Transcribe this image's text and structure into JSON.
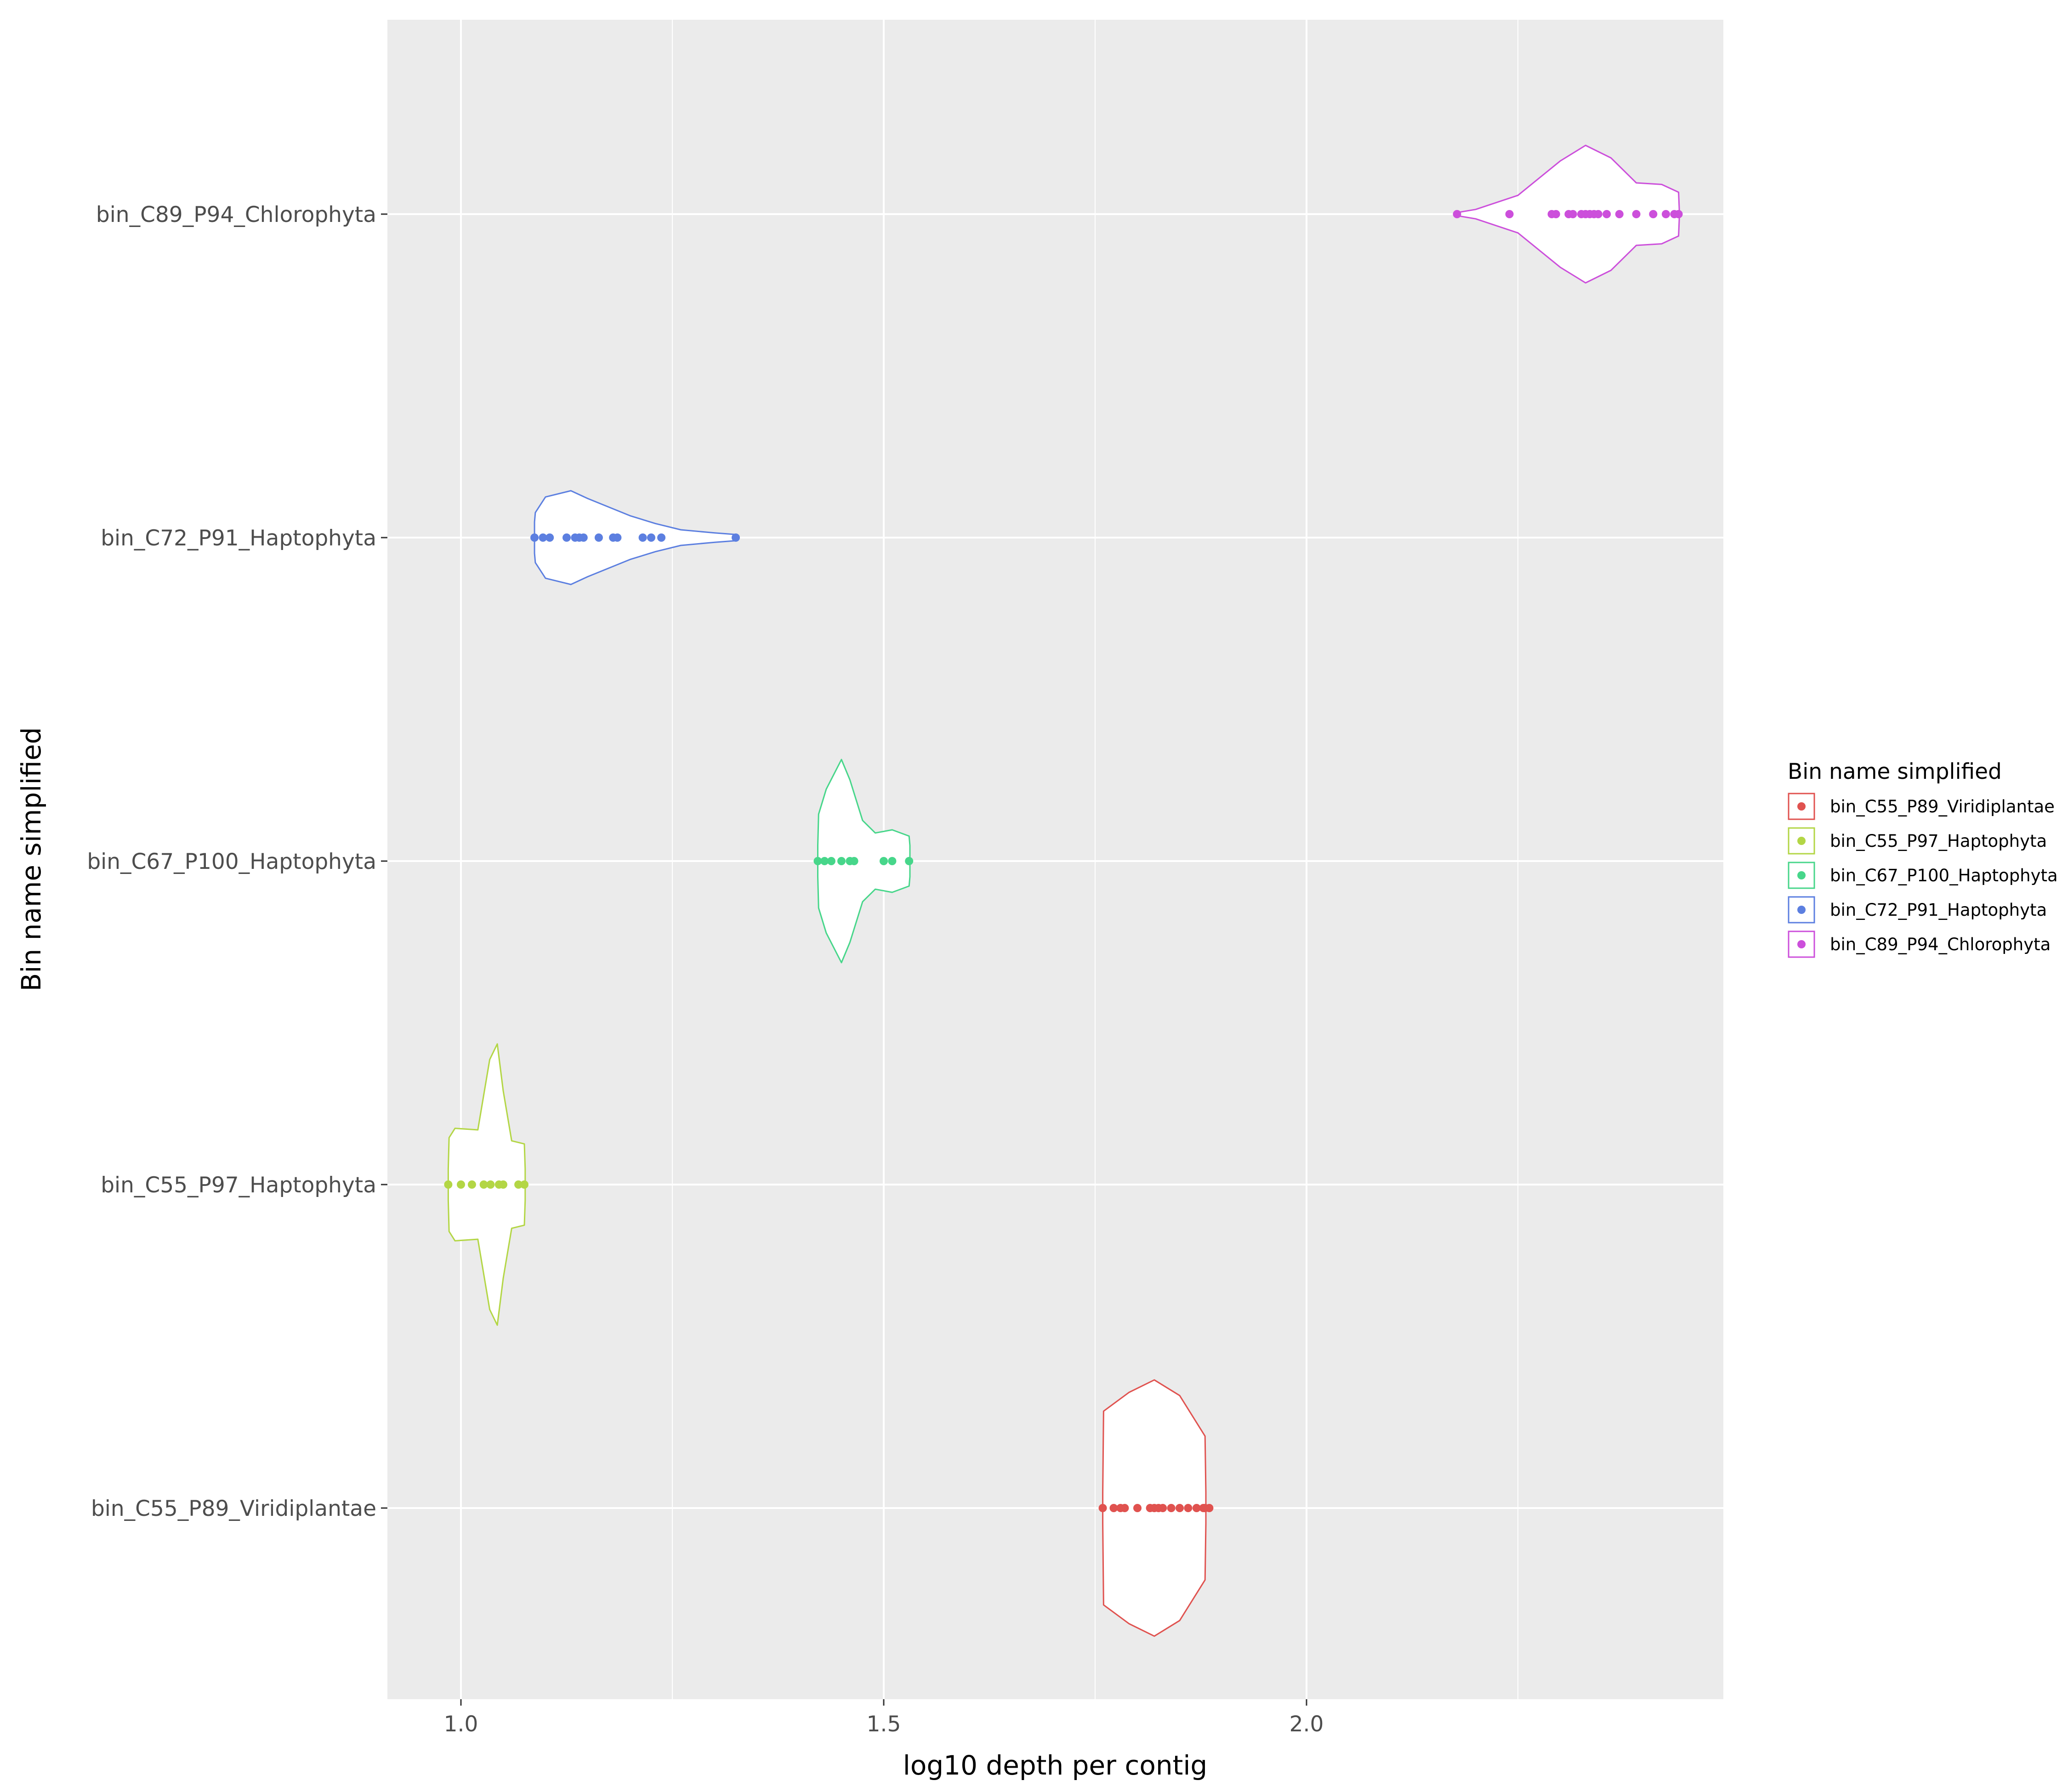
{
  "chart_data": {
    "type": "violin",
    "orientation": "horizontal",
    "title": "",
    "xlabel": "log10 depth per contig",
    "ylabel": "Bin name simplified",
    "xlim": [
      0.912,
      2.5
    ],
    "xticks": [
      1.0,
      1.5,
      2.0
    ],
    "xtick_labels": [
      "1.0",
      "1.5",
      "2.0"
    ],
    "x_minor_ticks": [
      1.25,
      1.75,
      2.25
    ],
    "grid": true,
    "legend": {
      "title": "Bin name simplified",
      "placement": "right",
      "entries": [
        "bin_C55_P89_Viridiplantae",
        "bin_C55_P97_Haptophyta",
        "bin_C67_P100_Haptophyta",
        "bin_C72_P91_Haptophyta",
        "bin_C89_P94_Chlorophyta"
      ]
    },
    "categories": [
      "bin_C55_P89_Viridiplantae",
      "bin_C55_P97_Haptophyta",
      "bin_C67_P100_Haptophyta",
      "bin_C72_P91_Haptophyta",
      "bin_C89_P94_Chlorophyta"
    ],
    "series": [
      {
        "name": "bin_C55_P89_Viridiplantae",
        "color": "#e0524f",
        "points": [
          1.759,
          1.772,
          1.78,
          1.785,
          1.8,
          1.815,
          1.82,
          1.825,
          1.83,
          1.84,
          1.85,
          1.86,
          1.87,
          1.88,
          1.885,
          1.878
        ],
        "density": [
          [
            1.759,
            0.1
          ],
          [
            1.76,
            0.62
          ],
          [
            1.79,
            0.74
          ],
          [
            1.82,
            0.82
          ],
          [
            1.85,
            0.72
          ],
          [
            1.88,
            0.46
          ],
          [
            1.881,
            0.1
          ]
        ]
      },
      {
        "name": "bin_C55_P97_Haptophyta",
        "color": "#b3d645",
        "points": [
          0.985,
          1.0,
          1.013,
          1.027,
          1.035,
          1.045,
          1.05,
          1.068,
          1.075
        ],
        "density": [
          [
            0.985,
            0.1
          ],
          [
            0.986,
            0.3
          ],
          [
            0.993,
            0.36
          ],
          [
            1.02,
            0.35
          ],
          [
            1.034,
            0.8
          ],
          [
            1.043,
            0.9
          ],
          [
            1.05,
            0.6
          ],
          [
            1.06,
            0.28
          ],
          [
            1.075,
            0.26
          ],
          [
            1.076,
            0.1
          ]
        ]
      },
      {
        "name": "bin_C67_P100_Haptophyta",
        "color": "#47d68a",
        "points": [
          1.422,
          1.43,
          1.438,
          1.45,
          1.46,
          1.465,
          1.5,
          1.51,
          1.53
        ],
        "density": [
          [
            1.422,
            0.1
          ],
          [
            1.423,
            0.3
          ],
          [
            1.432,
            0.46
          ],
          [
            1.45,
            0.65
          ],
          [
            1.46,
            0.52
          ],
          [
            1.475,
            0.26
          ],
          [
            1.49,
            0.18
          ],
          [
            1.51,
            0.2
          ],
          [
            1.53,
            0.16
          ],
          [
            1.531,
            0.1
          ]
        ]
      },
      {
        "name": "bin_C72_P91_Haptophyta",
        "color": "#5c7fe0",
        "points": [
          1.087,
          1.097,
          1.105,
          1.125,
          1.135,
          1.14,
          1.145,
          1.163,
          1.18,
          1.185,
          1.215,
          1.225,
          1.237,
          1.325
        ],
        "density": [
          [
            1.087,
            0.1
          ],
          [
            1.088,
            0.16
          ],
          [
            1.1,
            0.26
          ],
          [
            1.13,
            0.3
          ],
          [
            1.15,
            0.25
          ],
          [
            1.2,
            0.14
          ],
          [
            1.23,
            0.09
          ],
          [
            1.26,
            0.05
          ],
          [
            1.3,
            0.03
          ],
          [
            1.325,
            0.02
          ]
        ]
      },
      {
        "name": "bin_C89_P94_Chlorophyta",
        "color": "#cc4fdb",
        "points": [
          2.178,
          2.24,
          2.29,
          2.295,
          2.31,
          2.315,
          2.325,
          2.33,
          2.335,
          2.34,
          2.345,
          2.355,
          2.37,
          2.39,
          2.41,
          2.425,
          2.435,
          2.44
        ],
        "density": [
          [
            2.178,
            0.01
          ],
          [
            2.2,
            0.03
          ],
          [
            2.25,
            0.12
          ],
          [
            2.3,
            0.34
          ],
          [
            2.33,
            0.44
          ],
          [
            2.36,
            0.36
          ],
          [
            2.39,
            0.2
          ],
          [
            2.42,
            0.19
          ],
          [
            2.44,
            0.14
          ],
          [
            2.441,
            0.01
          ]
        ]
      }
    ]
  }
}
